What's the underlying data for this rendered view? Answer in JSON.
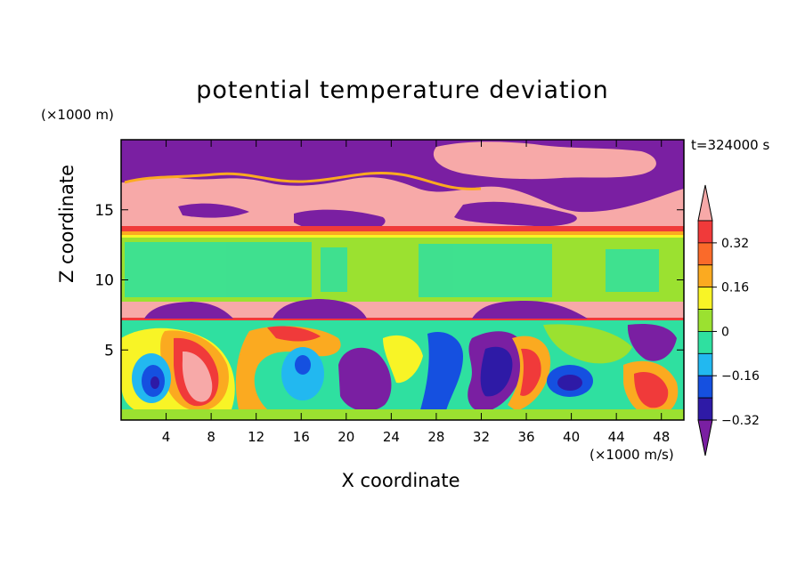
{
  "chart_data": {
    "type": "heatmap",
    "title": "potential temperature deviation",
    "xlabel": "X coordinate",
    "ylabel": "Z coordinate",
    "x_units": "(×1000 m/s)",
    "y_units": "(×1000 m)",
    "time_label": "t=324000 s",
    "xlim": [
      0,
      50
    ],
    "ylim": [
      0,
      20
    ],
    "x_ticks": [
      4,
      8,
      12,
      16,
      20,
      24,
      28,
      32,
      36,
      40,
      44,
      48
    ],
    "y_ticks": [
      5,
      10,
      15
    ],
    "colorbar": {
      "levels": [
        -0.4,
        -0.32,
        -0.24,
        -0.16,
        -0.08,
        0,
        0.08,
        0.16,
        0.24,
        0.32,
        0.4
      ],
      "tick_labels": [
        "0.32",
        "0.16",
        "0",
        "−0.16",
        "−0.32"
      ],
      "tick_values": [
        0.32,
        0.16,
        0,
        -0.16,
        -0.32
      ],
      "colors": [
        "#7a1fa2",
        "#2e1aa6",
        "#1550e0",
        "#22b8f0",
        "#2fe0a0",
        "#9be130",
        "#f8f426",
        "#fbaa20",
        "#fa6a2a",
        "#f03a3a",
        "#f7a9a8"
      ]
    },
    "field_structure": [
      {
        "z_range": [
          0,
          7.2
        ],
        "description": "large convective eddies, values roughly -0.4 to 0.4"
      },
      {
        "z_range": [
          7.2,
          8.3
        ],
        "value": 0.4
      },
      {
        "z_range": [
          8.3,
          13.2
        ],
        "value": 0.04
      },
      {
        "z_range": [
          13.2,
          14
        ],
        "value": 0.34
      },
      {
        "z_range": [
          14,
          20
        ],
        "description": "upper layer alternating about 0.4 and -0.4"
      }
    ]
  }
}
